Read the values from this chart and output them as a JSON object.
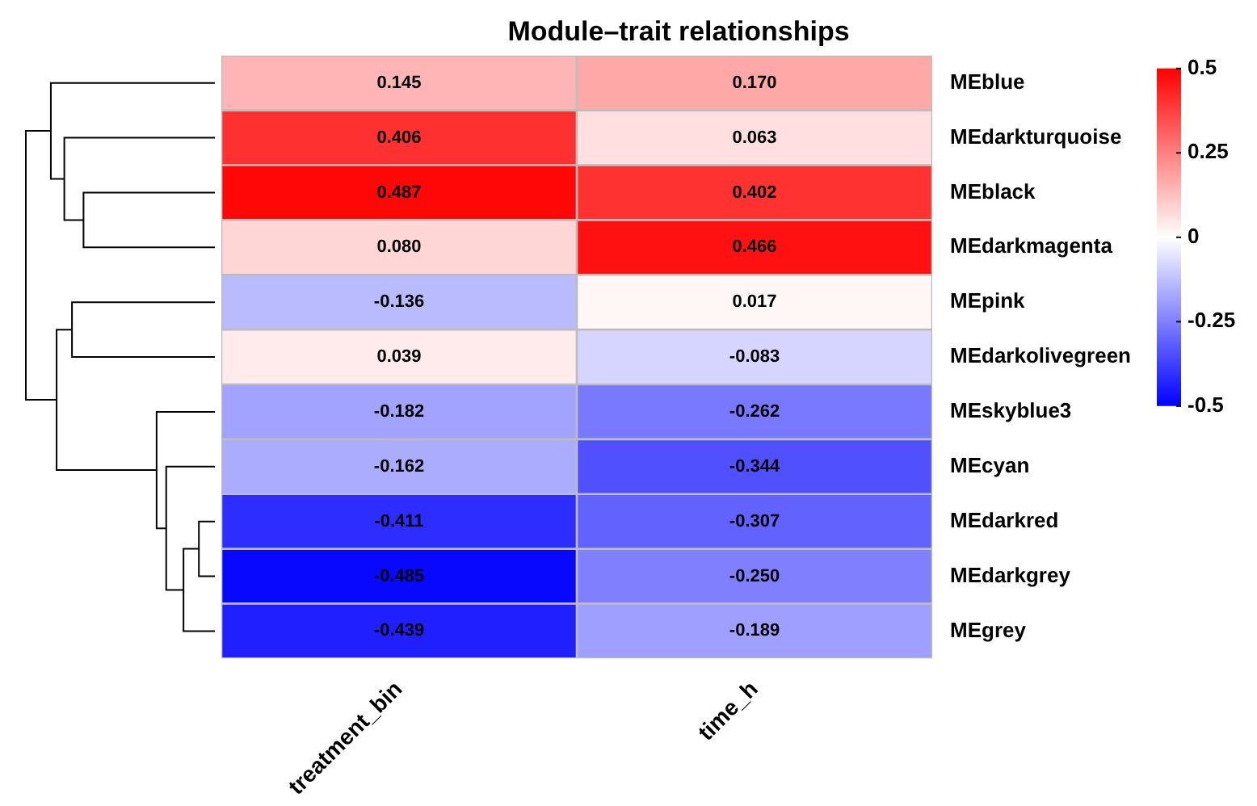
{
  "chart_data": {
    "type": "heatmap",
    "title": "Module–trait relationships",
    "categories": [
      "treatment_bin",
      "time_h"
    ],
    "y_categories": [
      "MEblue",
      "MEdarkturquoise",
      "MEblack",
      "MEdarkmagenta",
      "MEpink",
      "MEdarkolivegreen",
      "MEskyblue3",
      "MEcyan",
      "MEdarkred",
      "MEdarkgrey",
      "MEgrey"
    ],
    "cells": [
      [
        0.145,
        0.17
      ],
      [
        0.406,
        0.063
      ],
      [
        0.487,
        0.402
      ],
      [
        0.08,
        0.466
      ],
      [
        -0.136,
        0.017
      ],
      [
        0.039,
        -0.083
      ],
      [
        -0.182,
        -0.262
      ],
      [
        -0.162,
        -0.344
      ],
      [
        -0.411,
        -0.307
      ],
      [
        -0.485,
        -0.25
      ],
      [
        -0.439,
        -0.189
      ]
    ],
    "cell_labels": [
      [
        "0.145",
        "0.170"
      ],
      [
        "0.406",
        "0.063"
      ],
      [
        "0.487",
        "0.402"
      ],
      [
        "0.080",
        "0.466"
      ],
      [
        "-0.136",
        "0.017"
      ],
      [
        "0.039",
        "-0.083"
      ],
      [
        "-0.182",
        "-0.262"
      ],
      [
        "-0.162",
        "-0.344"
      ],
      [
        "-0.411",
        "-0.307"
      ],
      [
        "-0.485",
        "-0.250"
      ],
      [
        "-0.439",
        "-0.189"
      ]
    ],
    "clim": [
      -0.5,
      0.5
    ],
    "cticks": [
      -0.5,
      -0.25,
      0,
      0.25,
      0.5
    ]
  }
}
